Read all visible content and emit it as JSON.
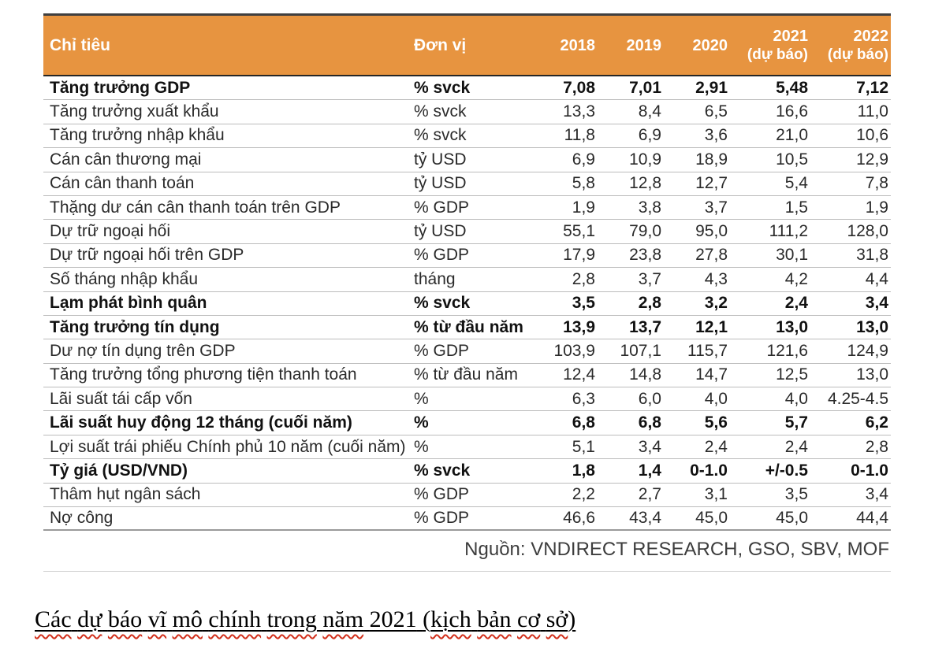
{
  "table": {
    "header": {
      "indicator": "Chỉ tiêu",
      "unit": "Đơn vị",
      "years": [
        {
          "label": "2018",
          "sub": ""
        },
        {
          "label": "2019",
          "sub": ""
        },
        {
          "label": "2020",
          "sub": ""
        },
        {
          "label": "2021",
          "sub": "(dự báo)"
        },
        {
          "label": "2022",
          "sub": "(dự báo)"
        }
      ]
    },
    "rows": [
      {
        "label": "Tăng trưởng GDP",
        "unit": "% svck",
        "values": [
          "7,08",
          "7,01",
          "2,91",
          "5,48",
          "7,12"
        ],
        "bold": true
      },
      {
        "label": "Tăng trưởng xuất khẩu",
        "unit": "% svck",
        "values": [
          "13,3",
          "8,4",
          "6,5",
          "16,6",
          "11,0"
        ],
        "bold": false
      },
      {
        "label": "Tăng trưởng nhập khẩu",
        "unit": "% svck",
        "values": [
          "11,8",
          "6,9",
          "3,6",
          "21,0",
          "10,6"
        ],
        "bold": false
      },
      {
        "label": "Cán cân thương mại",
        "unit": "tỷ USD",
        "values": [
          "6,9",
          "10,9",
          "18,9",
          "10,5",
          "12,9"
        ],
        "bold": false
      },
      {
        "label": "Cán cân thanh toán",
        "unit": "tỷ USD",
        "values": [
          "5,8",
          "12,8",
          "12,7",
          "5,4",
          "7,8"
        ],
        "bold": false
      },
      {
        "label": "Thặng dư cán cân thanh toán trên GDP",
        "unit": "% GDP",
        "values": [
          "1,9",
          "3,8",
          "3,7",
          "1,5",
          "1,9"
        ],
        "bold": false
      },
      {
        "label": "Dự trữ ngoại hối",
        "unit": "tỷ USD",
        "values": [
          "55,1",
          "79,0",
          "95,0",
          "111,2",
          "128,0"
        ],
        "bold": false
      },
      {
        "label": "Dự trữ ngoại hối trên GDP",
        "unit": "% GDP",
        "values": [
          "17,9",
          "23,8",
          "27,8",
          "30,1",
          "31,8"
        ],
        "bold": false
      },
      {
        "label": "Số tháng nhập khẩu",
        "unit": "tháng",
        "values": [
          "2,8",
          "3,7",
          "4,3",
          "4,2",
          "4,4"
        ],
        "bold": false
      },
      {
        "label": "Lạm phát bình quân",
        "unit": "% svck",
        "values": [
          "3,5",
          "2,8",
          "3,2",
          "2,4",
          "3,4"
        ],
        "bold": true
      },
      {
        "label": "Tăng trưởng tín dụng",
        "unit": "% từ đầu năm",
        "values": [
          "13,9",
          "13,7",
          "12,1",
          "13,0",
          "13,0"
        ],
        "bold": true
      },
      {
        "label": "Dư nợ tín dụng trên GDP",
        "unit": "% GDP",
        "values": [
          "103,9",
          "107,1",
          "115,7",
          "121,6",
          "124,9"
        ],
        "bold": false
      },
      {
        "label": "Tăng trưởng tổng phương tiện thanh toán",
        "unit": "% từ đầu năm",
        "values": [
          "12,4",
          "14,8",
          "14,7",
          "12,5",
          "13,0"
        ],
        "bold": false
      },
      {
        "label": "Lãi suất tái cấp vốn",
        "unit": "%",
        "values": [
          "6,3",
          "6,0",
          "4,0",
          "4,0",
          "4.25-4.5"
        ],
        "bold": false
      },
      {
        "label": "Lãi suất huy động 12 tháng (cuối năm)",
        "unit": "%",
        "values": [
          "6,8",
          "6,8",
          "5,6",
          "5,7",
          "6,2"
        ],
        "bold": true
      },
      {
        "label": "Lợi suất trái phiếu Chính phủ 10 năm (cuối năm)",
        "unit": "%",
        "values": [
          "5,1",
          "3,4",
          "2,4",
          "2,4",
          "2,8"
        ],
        "bold": false
      },
      {
        "label": "Tỷ giá (USD/VND)",
        "unit": "% svck",
        "values": [
          "1,8",
          "1,4",
          "0-1.0",
          "+/-0.5",
          "0-1.0"
        ],
        "bold": true
      },
      {
        "label": "Thâm hụt ngân sách",
        "unit": "% GDP",
        "values": [
          "2,2",
          "2,7",
          "3,1",
          "3,5",
          "3,4"
        ],
        "bold": false
      },
      {
        "label": "Nợ công",
        "unit": "% GDP",
        "values": [
          "46,6",
          "43,4",
          "45,0",
          "45,0",
          "44,4"
        ],
        "bold": false
      }
    ]
  },
  "source": "Nguồn: VNDIRECT RESEARCH, GSO, SBV, MOF",
  "caption": {
    "segments": [
      {
        "text": "Các",
        "wavy": true
      },
      {
        "text": "dự",
        "wavy": true
      },
      {
        "text": "báo",
        "wavy": true
      },
      {
        "text": "vĩ",
        "wavy": true
      },
      {
        "text": "mô",
        "wavy": true
      },
      {
        "text": "chính",
        "wavy": true
      },
      {
        "text": "trong",
        "wavy": true
      },
      {
        "text": "năm",
        "wavy": true
      },
      {
        "text": "2021",
        "wavy": false
      },
      {
        "text": "(",
        "wavy": false,
        "glue": true
      },
      {
        "text": "kịch",
        "wavy": true
      },
      {
        "text": "bản",
        "wavy": true
      },
      {
        "text": "cơ",
        "wavy": true
      },
      {
        "text": "sở",
        "wavy": true,
        "glue": true
      },
      {
        "text": ")",
        "wavy": false
      }
    ]
  },
  "colors": {
    "header_bg": "#E79440",
    "header_text": "#FFFFFF",
    "top_border": "#3F3F3F",
    "header_bottom_border": "#262626",
    "row_separator": "#BCBCBC",
    "table_bottom_border": "#9A9A9A",
    "source_text": "#3D3D3D",
    "squiggle_red": "#D2301C"
  }
}
